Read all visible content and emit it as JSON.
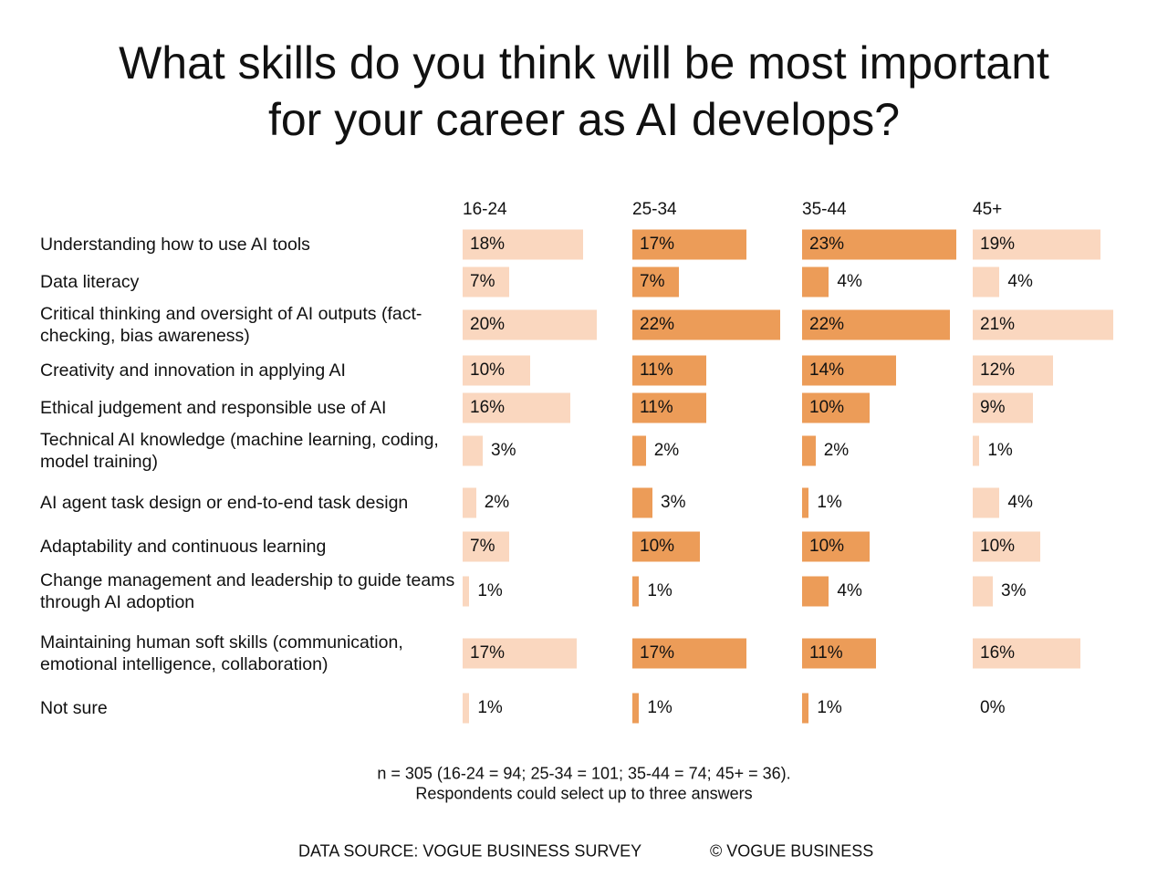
{
  "chart_data": {
    "type": "bar",
    "orientation": "horizontal",
    "title": "What skills do you think will be most important for your career as AI develops?",
    "categories": [
      "Understanding how to use AI tools",
      "Data literacy",
      "Critical thinking and oversight of AI outputs (fact-checking, bias awareness)",
      "Creativity and innovation in applying AI",
      "Ethical judgement and responsible use of AI",
      "Technical AI knowledge (machine learning, coding, model training)",
      "AI agent task design or end-to-end task design",
      "Adaptability and continuous learning",
      "Change management and leadership to guide teams through AI adoption",
      "Maintaining human soft skills (communication, emotional intelligence, collaboration)",
      "Not sure"
    ],
    "series": [
      {
        "name": "16-24",
        "color": "#fad7bf",
        "values": [
          18,
          7,
          20,
          10,
          16,
          3,
          2,
          7,
          1,
          17,
          1
        ],
        "value_labels": [
          "18%",
          "7%",
          "20%",
          "10%",
          "16%",
          "3%",
          "2%",
          "7%",
          "1%",
          "17%",
          "1%"
        ]
      },
      {
        "name": "25-34",
        "color": "#ec9c58",
        "values": [
          17,
          7,
          22,
          11,
          11,
          2,
          3,
          10,
          1,
          17,
          1
        ],
        "value_labels": [
          "17%",
          "7%",
          "22%",
          "11%",
          "11%",
          "2%",
          "3%",
          "10%",
          "1%",
          "17%",
          "1%"
        ]
      },
      {
        "name": "35-44",
        "color": "#ec9c58",
        "values": [
          23,
          4,
          22,
          14,
          10,
          2,
          1,
          10,
          4,
          11,
          1
        ],
        "value_labels": [
          "23%",
          "4%",
          "22%",
          "14%",
          "10%",
          "2%",
          "1%",
          "10%",
          "4%",
          "11%",
          "1%"
        ]
      },
      {
        "name": "45+",
        "color": "#fad7bf",
        "values": [
          19,
          4,
          21,
          12,
          9,
          1,
          4,
          10,
          3,
          16,
          0
        ],
        "value_labels": [
          "19%",
          "4%",
          "21%",
          "12%",
          "9%",
          "1%",
          "4%",
          "10%",
          "3%",
          "16%",
          "0%"
        ]
      }
    ],
    "notes": [
      "n = 305 (16-24 = 94; 25-34 = 101; 35-44 = 74; 45+ = 36).",
      "Respondents could select up to three answers"
    ],
    "source": "DATA SOURCE: VOGUE BUSINESS SURVEY",
    "copyright": "© VOGUE BUSINESS"
  }
}
